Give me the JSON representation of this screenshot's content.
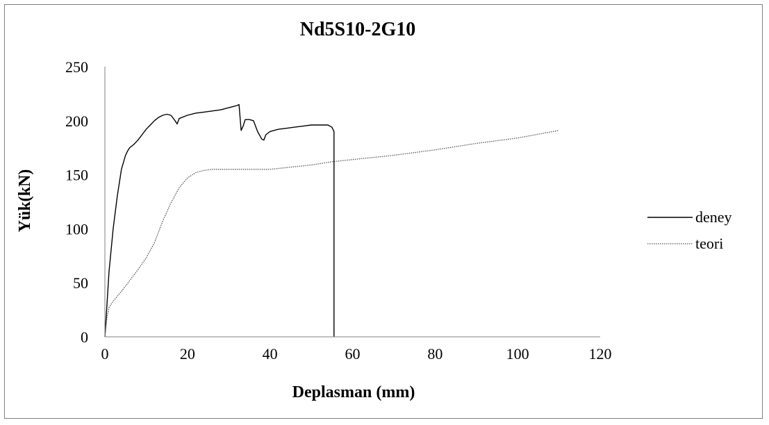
{
  "chart_data": {
    "type": "line",
    "title": "Nd5S10-2G10",
    "xlabel": "Deplasman (mm)",
    "ylabel": "Yük(kN)",
    "xlim": [
      0,
      120
    ],
    "ylim": [
      0,
      250
    ],
    "xticks": [
      0,
      20,
      40,
      60,
      80,
      100,
      120
    ],
    "yticks": [
      0,
      50,
      100,
      150,
      200,
      250
    ],
    "grid": false,
    "legend": "right",
    "series": [
      {
        "name": "deney",
        "color": "#000000",
        "dash": "solid",
        "x": [
          0,
          0.5,
          1,
          2,
          3,
          4,
          5,
          5.5,
          6,
          7,
          8,
          9,
          10,
          11,
          12,
          13,
          14,
          15,
          16,
          17,
          17.5,
          18,
          20,
          22,
          24,
          26,
          28,
          30,
          31,
          32,
          32.5,
          33,
          33.5,
          34,
          35,
          36,
          37,
          38,
          38.5,
          39,
          40,
          42,
          44,
          46,
          48,
          50,
          52,
          54,
          55,
          55.5,
          55.5
        ],
        "y": [
          0,
          30,
          60,
          100,
          130,
          155,
          168,
          172,
          175,
          178,
          182,
          187,
          192,
          196,
          200,
          203,
          205,
          206,
          205,
          200,
          197,
          202,
          205,
          207,
          208,
          209,
          210,
          212,
          213,
          214,
          215,
          191,
          195,
          201,
          201,
          200,
          190,
          183,
          182,
          187,
          190,
          192,
          193,
          194,
          195,
          196,
          196,
          196,
          194,
          190,
          0
        ]
      },
      {
        "name": "teori",
        "color": "#555555",
        "dash": "dotted",
        "x": [
          0,
          0.5,
          1,
          2,
          4,
          6,
          8,
          10,
          12,
          14,
          16,
          18,
          20,
          22,
          24,
          26,
          28,
          30,
          35,
          40,
          45,
          50,
          55,
          60,
          70,
          80,
          90,
          100,
          110
        ],
        "y": [
          0,
          18,
          27,
          33,
          42,
          52,
          62,
          73,
          87,
          107,
          124,
          138,
          147,
          152,
          154,
          155,
          155,
          155,
          155,
          155,
          157,
          159,
          162,
          164,
          168,
          173,
          179,
          184,
          191
        ]
      }
    ]
  }
}
